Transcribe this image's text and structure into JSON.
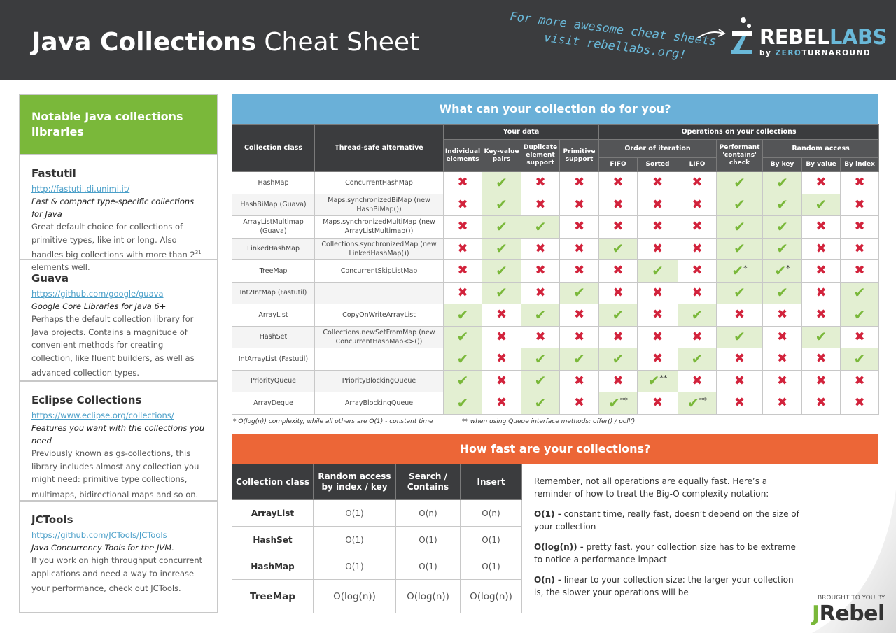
{
  "header": {
    "title_bold": "Java Collections",
    "title_light": "Cheat Sheet",
    "promo_line1": "For more awesome cheat sheets",
    "promo_line2": "visit rebellabs.org!",
    "logo_rebel": "REBEL",
    "logo_labs": "LABS",
    "logo_by": "by",
    "logo_zero": "ZERO",
    "logo_turnaround": "TURNAROUND"
  },
  "sidebar": {
    "title": "Notable Java collections libraries",
    "libraries": [
      {
        "name": "Fastutil",
        "url": "http://fastutil.di.unimi.it/",
        "tagline": "Fast & compact type-specific collections for Java",
        "description_pre": "Great default choice for collections of primitive types, like int or long. Also handles big collections with more than 2",
        "description_sup": "31",
        "description_post": " elements well."
      },
      {
        "name": "Guava",
        "url": "https://github.com/google/guava",
        "tagline": "Google Core Libraries for Java 6+",
        "description_pre": "Perhaps the default collection library for Java projects. Contains a magnitude of convenient methods for creating collection, like fluent builders, as well as advanced collection types.",
        "description_sup": "",
        "description_post": ""
      },
      {
        "name": "Eclipse Collections",
        "url": "https://www.eclipse.org/collections/",
        "tagline": "Features you want with the collections you need",
        "description_pre": "Previously known as gs-collections, this library includes almost any collection you might need: primitive type collections, multimaps, bidirectional maps and so on.",
        "description_sup": "",
        "description_post": ""
      },
      {
        "name": "JCTools",
        "url": "https://github.com/JCTools/JCTools",
        "tagline": "Java Concurrency Tools for the JVM.",
        "description_pre": "If you work on high throughput concurrent applications and need a way to increase your performance, check out JCTools.",
        "description_sup": "",
        "description_post": ""
      }
    ]
  },
  "collections_table": {
    "title": "What can your collection do for you?",
    "headers": {
      "collection_class": "Collection class",
      "thread_safe": "Thread-safe alternative",
      "your_data": "Your data",
      "operations": "Operations on your collections",
      "individual": "Individual elements",
      "key_value": "Key-value pairs",
      "duplicate": "Duplicate element support",
      "primitive": "Primitive support",
      "order": "Order of iteration",
      "contains": "Performant 'contains' check",
      "random": "Random access",
      "fifo": "FIFO",
      "sorted": "Sorted",
      "lifo": "LIFO",
      "by_key": "By key",
      "by_value": "By value",
      "by_index": "By index"
    },
    "check_symbol": "✔",
    "cross_symbol": "✖",
    "rows": [
      {
        "cls": "HashMap",
        "alt": "ConcurrentHashMap",
        "cells": [
          "x",
          "v",
          "x",
          "x",
          "x",
          "x",
          "x",
          "v",
          "v",
          "x",
          "x"
        ],
        "notes": [
          "",
          "",
          "",
          "",
          "",
          "",
          "",
          "",
          "",
          "",
          ""
        ]
      },
      {
        "cls": "HashBiMap (Guava)",
        "alt": "Maps.synchronizedBiMap (new HashBiMap())",
        "cells": [
          "x",
          "v",
          "x",
          "x",
          "x",
          "x",
          "x",
          "v",
          "v",
          "v",
          "x"
        ],
        "notes": [
          "",
          "",
          "",
          "",
          "",
          "",
          "",
          "",
          "",
          "",
          ""
        ]
      },
      {
        "cls": "ArrayListMultimap (Guava)",
        "alt": "Maps.synchronizedMultiMap (new ArrayListMultimap())",
        "cells": [
          "x",
          "v",
          "v",
          "x",
          "x",
          "x",
          "x",
          "v",
          "v",
          "x",
          "x"
        ],
        "notes": [
          "",
          "",
          "",
          "",
          "",
          "",
          "",
          "",
          "",
          "",
          ""
        ]
      },
      {
        "cls": "LinkedHashMap",
        "alt": "Collections.synchronizedMap (new LinkedHashMap())",
        "cells": [
          "x",
          "v",
          "x",
          "x",
          "v",
          "x",
          "x",
          "v",
          "v",
          "x",
          "x"
        ],
        "notes": [
          "",
          "",
          "",
          "",
          "",
          "",
          "",
          "",
          "",
          "",
          ""
        ]
      },
      {
        "cls": "TreeMap",
        "alt": "ConcurrentSkipListMap",
        "cells": [
          "x",
          "v",
          "x",
          "x",
          "x",
          "v",
          "x",
          "v",
          "v",
          "x",
          "x"
        ],
        "notes": [
          "",
          "",
          "",
          "",
          "",
          "",
          "",
          "*",
          "*",
          "",
          ""
        ]
      },
      {
        "cls": "Int2IntMap (Fastutil)",
        "alt": "",
        "cells": [
          "x",
          "v",
          "x",
          "v",
          "x",
          "x",
          "x",
          "v",
          "v",
          "x",
          "v"
        ],
        "notes": [
          "",
          "",
          "",
          "",
          "",
          "",
          "",
          "",
          "",
          "",
          ""
        ]
      },
      {
        "cls": "ArrayList",
        "alt": "CopyOnWriteArrayList",
        "cells": [
          "v",
          "x",
          "v",
          "x",
          "v",
          "x",
          "v",
          "x",
          "x",
          "x",
          "v"
        ],
        "notes": [
          "",
          "",
          "",
          "",
          "",
          "",
          "",
          "",
          "",
          "",
          ""
        ]
      },
      {
        "cls": "HashSet",
        "alt": "Collections.newSetFromMap (new ConcurrentHashMap<>())",
        "cells": [
          "v",
          "x",
          "x",
          "x",
          "x",
          "x",
          "x",
          "v",
          "x",
          "v",
          "x"
        ],
        "notes": [
          "",
          "",
          "",
          "",
          "",
          "",
          "",
          "",
          "",
          "",
          ""
        ]
      },
      {
        "cls": "IntArrayList (Fastutil)",
        "alt": "",
        "cells": [
          "v",
          "x",
          "v",
          "v",
          "v",
          "x",
          "v",
          "x",
          "x",
          "x",
          "v"
        ],
        "notes": [
          "",
          "",
          "",
          "",
          "",
          "",
          "",
          "",
          "",
          "",
          ""
        ]
      },
      {
        "cls": "PriorityQueue",
        "alt": "PriorityBlockingQueue",
        "cells": [
          "v",
          "x",
          "v",
          "x",
          "x",
          "v",
          "x",
          "x",
          "x",
          "x",
          "x"
        ],
        "notes": [
          "",
          "",
          "",
          "",
          "",
          "**",
          "",
          "",
          "",
          "",
          ""
        ]
      },
      {
        "cls": "ArrayDeque",
        "alt": "ArrayBlockingQueue",
        "cells": [
          "v",
          "x",
          "v",
          "x",
          "v",
          "x",
          "v",
          "x",
          "x",
          "x",
          "x"
        ],
        "notes": [
          "",
          "",
          "",
          "",
          "**",
          "",
          "**",
          "",
          "",
          "",
          ""
        ]
      }
    ],
    "footnote1": "* O(log(n)) complexity, while all others are O(1) - constant time",
    "footnote2": "** when using Queue interface methods: offer() / poll()"
  },
  "speed_table": {
    "title": "How fast are your collections?",
    "headers": [
      "Collection class",
      "Random access by index / key",
      "Search / Contains",
      "Insert"
    ],
    "rows": [
      [
        "ArrayList",
        "O(1)",
        "O(n)",
        "O(n)"
      ],
      [
        "HashSet",
        "O(1)",
        "O(1)",
        "O(1)"
      ],
      [
        "HashMap",
        "O(1)",
        "O(1)",
        "O(1)"
      ],
      [
        "TreeMap",
        "O(log(n))",
        "O(log(n))",
        "O(log(n))"
      ]
    ]
  },
  "bigo": {
    "intro": "Remember, not all operations are equally fast. Here’s a reminder of how to treat the Big-O complexity notation:",
    "o1_label": "O(1) -",
    "o1_text": " constant time, really fast, doesn’t depend on the size of your collection",
    "ologn_label": "O(log(n)) -",
    "ologn_text": " pretty fast, your collection size has to be extreme to notice a performance impact",
    "on_label": "O(n) -",
    "on_text": " linear to your collection size: the larger your collection is, the slower your operations will be"
  },
  "footer": {
    "brought": "BROUGHT TO YOU BY",
    "jrebel_j": "J",
    "jrebel_rest": "Rebel"
  },
  "colors": {
    "header_bg": "#3b3c3e",
    "green": "#7ab83a",
    "blue": "#6ab0d8",
    "orange": "#ec6637",
    "red_cross": "#d2233c",
    "green_cell": "#e3efd2"
  }
}
